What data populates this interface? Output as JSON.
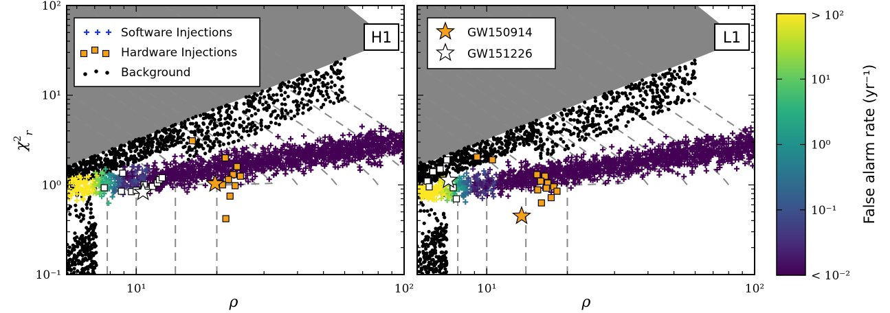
{
  "chart_data": [
    {
      "type": "scatter",
      "detector_label": "H1",
      "xlabel": "ρ",
      "ylabel": "χ²_r",
      "xlim": [
        5.5,
        100
      ],
      "ylim": [
        0.1,
        100
      ],
      "xscale": "log",
      "yscale": "log",
      "x_ticks": [
        {
          "v": 10,
          "label": "10¹"
        },
        {
          "v": 100,
          "label": "10²"
        }
      ],
      "y_ticks": [
        {
          "v": 0.1,
          "label": "10⁻¹"
        },
        {
          "v": 1,
          "label": "10⁰"
        },
        {
          "v": 10,
          "label": "10¹"
        },
        {
          "v": 100,
          "label": "10²"
        }
      ],
      "legend": {
        "position": "upper-left",
        "entries": [
          {
            "label": "Software Injections",
            "marker": "plus",
            "color": "#1f3bd6"
          },
          {
            "label": "Hardware Injections",
            "marker": "square",
            "color": "#f5a01a"
          },
          {
            "label": "Background",
            "marker": "dot",
            "color": "#000000"
          }
        ]
      },
      "grid": false,
      "series": [
        {
          "name": "Hardware Injections",
          "marker": "square",
          "color": "#f5a01a",
          "points": [
            [
              16.2,
              3.1
            ],
            [
              21.5,
              2.0
            ],
            [
              23.8,
              1.6
            ],
            [
              23.0,
              1.3
            ],
            [
              24.5,
              1.25
            ],
            [
              22.1,
              1.15
            ],
            [
              21.0,
              1.0
            ],
            [
              23.4,
              0.98
            ],
            [
              22.4,
              0.75
            ],
            [
              21.6,
              0.42
            ]
          ]
        },
        {
          "name": "Hardware Injections (white, below threshold)",
          "marker": "square",
          "color": "#ffffff",
          "points": [
            [
              7.6,
              0.93
            ],
            [
              8.9,
              1.35
            ],
            [
              8.8,
              0.85
            ],
            [
              9.6,
              0.84
            ],
            [
              10.0,
              0.87
            ],
            [
              10.7,
              1.0
            ],
            [
              11.0,
              0.87
            ],
            [
              11.5,
              0.96
            ],
            [
              12.0,
              1.05
            ],
            [
              12.2,
              1.14
            ],
            [
              12.5,
              1.2
            ]
          ]
        },
        {
          "name": "GW150914",
          "marker": "star",
          "color": "#f5a01a",
          "points": [
            [
              19.7,
              1.03
            ]
          ]
        },
        {
          "name": "GW151226",
          "marker": "star",
          "color": "#ffffff",
          "points": [
            [
              10.6,
              0.83
            ]
          ]
        }
      ]
    },
    {
      "type": "scatter",
      "detector_label": "L1",
      "xlabel": "ρ",
      "ylabel": "",
      "xlim": [
        5.5,
        100
      ],
      "ylim": [
        0.1,
        100
      ],
      "xscale": "log",
      "yscale": "log",
      "x_ticks": [
        {
          "v": 10,
          "label": "10¹"
        },
        {
          "v": 100,
          "label": "10²"
        }
      ],
      "y_ticks": [],
      "legend": {
        "position": "upper-left",
        "entries": [
          {
            "label": "GW150914",
            "marker": "star",
            "color": "#f5a01a"
          },
          {
            "label": "GW151226",
            "marker": "star",
            "color": "#ffffff"
          }
        ]
      },
      "grid": false,
      "series": [
        {
          "name": "Hardware Injections",
          "marker": "square",
          "color": "#f5a01a",
          "points": [
            [
              9.2,
              2.05
            ],
            [
              10.5,
              1.9
            ],
            [
              15.4,
              1.3
            ],
            [
              16.5,
              1.25
            ],
            [
              15.9,
              1.1
            ],
            [
              16.9,
              1.05
            ],
            [
              17.8,
              0.95
            ],
            [
              16.7,
              0.92
            ],
            [
              15.5,
              0.88
            ],
            [
              18.3,
              0.85
            ],
            [
              17.4,
              0.72
            ],
            [
              16.0,
              0.63
            ]
          ]
        },
        {
          "name": "Hardware Injections (white, below threshold)",
          "marker": "square",
          "color": "#ffffff",
          "points": [
            [
              6.0,
              1.1
            ],
            [
              6.3,
              1.4
            ],
            [
              6.7,
              1.5
            ],
            [
              7.1,
              1.9
            ],
            [
              6.1,
              0.95
            ],
            [
              7.5,
              0.93
            ],
            [
              7.7,
              0.7
            ]
          ]
        },
        {
          "name": "GW150914",
          "marker": "star",
          "color": "#f5a01a",
          "points": [
            [
              13.5,
              0.45
            ]
          ]
        },
        {
          "name": "GW151226",
          "marker": "star",
          "color": "#ffffff",
          "points": [
            [
              7.2,
              1.13
            ]
          ]
        }
      ]
    }
  ],
  "colorbar": {
    "label": "False alarm rate (yr⁻¹)",
    "colormap": "viridis",
    "scale": "log",
    "range": [
      0.01,
      100
    ],
    "ticks": [
      {
        "v": 100,
        "label": "> 10²"
      },
      {
        "v": 10,
        "label": "10¹"
      },
      {
        "v": 1,
        "label": "10⁰"
      },
      {
        "v": 0.1,
        "label": "10⁻¹"
      },
      {
        "v": 0.01,
        "label": "< 10⁻²"
      }
    ]
  },
  "colors": {
    "purple": "#440154",
    "yellow": "#fde725",
    "gray_region": "#858585",
    "dashed": "#888888"
  }
}
